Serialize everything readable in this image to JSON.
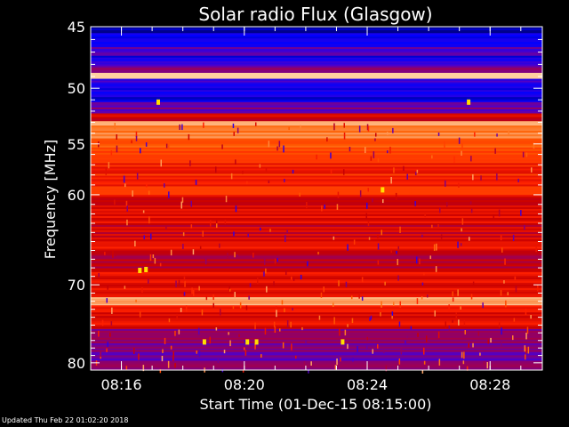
{
  "chart_data": {
    "type": "heatmap",
    "title": "Solar radio Flux (Glasgow)",
    "xlabel": "Start Time (01-Dec-15 08:15:00)",
    "ylabel": "Frequency [MHz]",
    "x_range_minutes": [
      0,
      14.7
    ],
    "x_ticks": [
      {
        "minute": 1,
        "label": "08:16"
      },
      {
        "minute": 5,
        "label": "08:20"
      },
      {
        "minute": 9,
        "label": "08:24"
      },
      {
        "minute": 13,
        "label": "08:28"
      }
    ],
    "ylim": [
      45,
      81
    ],
    "y_scale": "log",
    "y_inverted": true,
    "y_ticks": [
      45,
      50,
      55,
      60,
      70,
      80
    ],
    "colormap": [
      "#00008c",
      "#0000ff",
      "#5000c8",
      "#a00050",
      "#c80000",
      "#ff2000",
      "#ff6000",
      "#ffa060",
      "#ffd0a0"
    ],
    "bands": [
      {
        "from": 45.0,
        "to": 45.5,
        "level": 0.0
      },
      {
        "from": 45.5,
        "to": 46.6,
        "level": 0.12
      },
      {
        "from": 46.6,
        "to": 47.3,
        "level": 0.25
      },
      {
        "from": 47.3,
        "to": 48.0,
        "level": 0.15
      },
      {
        "from": 48.0,
        "to": 48.7,
        "level": 0.3
      },
      {
        "from": 48.7,
        "to": 49.2,
        "level": 1.0
      },
      {
        "from": 49.2,
        "to": 50.0,
        "level": 0.2
      },
      {
        "from": 50.0,
        "to": 51.2,
        "level": 0.12
      },
      {
        "from": 51.2,
        "to": 52.2,
        "level": 0.3
      },
      {
        "from": 52.2,
        "to": 52.9,
        "level": 0.5
      },
      {
        "from": 52.9,
        "to": 53.3,
        "level": 0.95
      },
      {
        "from": 53.3,
        "to": 54.5,
        "level": 0.8
      },
      {
        "from": 54.5,
        "to": 56.5,
        "level": 0.7
      },
      {
        "from": 56.5,
        "to": 60.0,
        "level": 0.62
      },
      {
        "from": 60.0,
        "to": 63.0,
        "level": 0.55
      },
      {
        "from": 63.0,
        "to": 65.0,
        "level": 0.5
      },
      {
        "from": 65.0,
        "to": 66.0,
        "level": 0.62
      },
      {
        "from": 66.0,
        "to": 68.5,
        "level": 0.45
      },
      {
        "from": 68.5,
        "to": 71.5,
        "level": 0.55
      },
      {
        "from": 71.5,
        "to": 72.5,
        "level": 0.9
      },
      {
        "from": 72.5,
        "to": 75.5,
        "level": 0.55
      },
      {
        "from": 75.5,
        "to": 78.5,
        "level": 0.35
      },
      {
        "from": 78.5,
        "to": 81.0,
        "level": 0.3
      }
    ],
    "bright_points": [
      {
        "minute": 2.2,
        "freq": 51.2
      },
      {
        "minute": 12.3,
        "freq": 51.2
      },
      {
        "minute": 9.5,
        "freq": 59.5
      },
      {
        "minute": 3.7,
        "freq": 77.2
      },
      {
        "minute": 5.1,
        "freq": 77.2
      },
      {
        "minute": 5.4,
        "freq": 77.2
      },
      {
        "minute": 8.2,
        "freq": 77.2
      },
      {
        "minute": 1.8,
        "freq": 68.2
      },
      {
        "minute": 1.6,
        "freq": 68.3
      }
    ]
  },
  "footer": "Updated Thu Feb 22 01:02:20 2018"
}
